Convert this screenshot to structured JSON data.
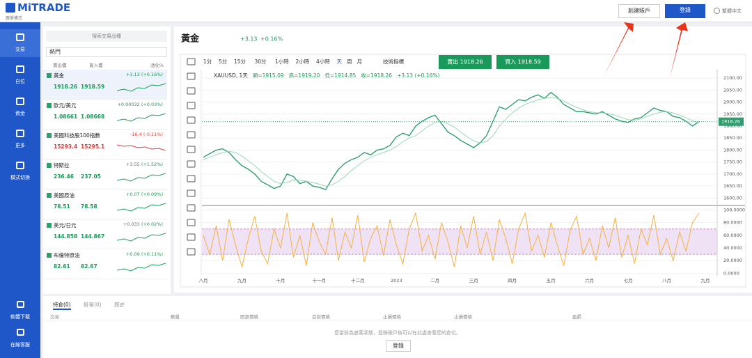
{
  "header": {
    "logo": "MiTRADE",
    "logo_sub": "跟單模式",
    "create_account": "創建賬戶",
    "login": "登錄",
    "language": "繁體中文"
  },
  "sidebar": {
    "items": [
      "交易",
      "自位",
      "資金",
      "更多",
      "模式切換"
    ],
    "bottom": [
      "軟體下載",
      "在線客服"
    ]
  },
  "watchlist": {
    "search": "搜索交易品種",
    "tab": "熱門",
    "columns": [
      "賣出價",
      "買入價",
      "漲化%"
    ],
    "rows": [
      {
        "name": "黃金",
        "sell": "1918.26",
        "buy": "1918.59",
        "change": "+3.13 (+0.16%)"
      },
      {
        "name": "歐元/美元",
        "sell": "1.08661",
        "buy": "1.08668",
        "change": "+0.00032 (+0.03%)"
      },
      {
        "name": "美國科技股100指數",
        "sell": "15293.4",
        "buy": "15295.1",
        "change": "-16.4 (-0.11%)"
      },
      {
        "name": "特斯拉",
        "sell": "236.46",
        "buy": "237.05",
        "change": "+3.55 (+1.52%)"
      },
      {
        "name": "美國原油",
        "sell": "78.51",
        "buy": "78.58",
        "change": "+0.07 (+0.09%)"
      },
      {
        "name": "美元/日元",
        "sell": "144.858",
        "buy": "144.867",
        "change": "+0.033 (+0.02%)"
      },
      {
        "name": "布倫特原油",
        "sell": "82.61",
        "buy": "82.67",
        "change": "+0.09 (+0.11%)"
      }
    ]
  },
  "instrument": {
    "name": "黃金",
    "change": "+3.13",
    "change_pct": "+0.16%"
  },
  "toolbar": {
    "intervals": [
      "1分",
      "5分",
      "15分",
      "30分",
      "1小時",
      "2小時",
      "4小時",
      "天",
      "周",
      "月"
    ],
    "indicators": "技術指標",
    "sell": "賣出 1918.26",
    "buy": "買入 1918.59"
  },
  "ohlc": {
    "symbol": "XAUUSD, 1天",
    "open": "開=1915.09",
    "high": "高=1919.20",
    "low": "低=1914.85",
    "close": "收=1918.26",
    "change": "+3.13 (+0.16%)"
  },
  "chart_data": {
    "type": "line",
    "categories": [
      "八月",
      null,
      null,
      null,
      null,
      null,
      "九月",
      null,
      null,
      null,
      null,
      null,
      "十月",
      null,
      null,
      null,
      null,
      null,
      "十一月",
      null,
      null,
      null,
      null,
      null,
      "十二月",
      null,
      null,
      null,
      null,
      null,
      "2023",
      null,
      null,
      null,
      null,
      null,
      "二月",
      null,
      null,
      null,
      null,
      null,
      "三月",
      null,
      null,
      null,
      null,
      null,
      "四月",
      null,
      null,
      null,
      null,
      null,
      "五月",
      null,
      null,
      null,
      null,
      null,
      "六月",
      null,
      null,
      null,
      null,
      null,
      "七月",
      null,
      null,
      null,
      null,
      null,
      "八月",
      null,
      null,
      null,
      null,
      null,
      "九月"
    ],
    "series": [
      {
        "color": "#2e9e6e",
        "values": [
          1770,
          1785,
          1800,
          1805,
          1790,
          1760,
          1735,
          1720,
          1700,
          1670,
          1655,
          1640,
          1650,
          1700,
          1690,
          1660,
          1670,
          1650,
          1645,
          1635,
          1680,
          1720,
          1745,
          1760,
          1770,
          1790,
          1780,
          1800,
          1805,
          1820,
          1855,
          1870,
          1860,
          1900,
          1920,
          1935,
          1945,
          1910,
          1875,
          1860,
          1840,
          1825,
          1810,
          1830,
          1860,
          1920,
          1980,
          1970,
          1990,
          2010,
          2005,
          2020,
          2030,
          2015,
          2040,
          2020,
          1990,
          1975,
          1960,
          1960,
          1955,
          1950,
          1960,
          1945,
          1930,
          1920,
          1915,
          1930,
          1935,
          1955,
          1975,
          1965,
          1960,
          1940,
          1935,
          1920,
          1900,
          1918.26,
          null
        ]
      },
      {
        "color": "#9ad8b8",
        "values": [
          1760,
          1770,
          1780,
          1790,
          1795,
          1790,
          1775,
          1755,
          1735,
          1710,
          1690,
          1670,
          1660,
          1665,
          1675,
          1675,
          1670,
          1665,
          1658,
          1650,
          1655,
          1670,
          1690,
          1715,
          1735,
          1755,
          1770,
          1780,
          1790,
          1800,
          1815,
          1835,
          1850,
          1860,
          1880,
          1900,
          1915,
          1920,
          1910,
          1895,
          1875,
          1855,
          1838,
          1830,
          1835,
          1860,
          1900,
          1930,
          1955,
          1975,
          1990,
          2000,
          2010,
          2015,
          2020,
          2015,
          2005,
          1990,
          1978,
          1968,
          1960,
          1956,
          1955,
          1952,
          1945,
          1935,
          1927,
          1925,
          1930,
          1940,
          1950,
          1958,
          1960,
          1955,
          1945,
          1935,
          1922,
          1915,
          null
        ]
      },
      {
        "color": "#f5b041",
        "axis": "y2",
        "values": [
          60,
          30,
          75,
          20,
          85,
          45,
          10,
          55,
          90,
          35,
          15,
          70,
          40,
          95,
          25,
          60,
          12,
          80,
          50,
          30,
          88,
          20,
          65,
          40,
          92,
          18,
          55,
          75,
          28,
          85,
          45,
          15,
          70,
          95,
          35,
          60,
          22,
          80,
          50,
          10,
          75,
          40,
          90,
          30,
          65,
          20,
          85,
          55,
          15,
          70,
          95,
          35,
          60,
          25,
          80,
          45,
          12,
          68,
          90,
          30,
          55,
          20,
          75,
          40,
          88,
          25,
          60,
          15,
          70,
          45,
          92,
          30,
          55,
          20,
          65,
          35,
          80,
          95,
          null
        ]
      }
    ],
    "ylim": [
      1575,
      2135
    ],
    "yticks": [
      {
        "value": 1600,
        "label": "1600.00"
      },
      {
        "value": 1650,
        "label": "1650.00"
      },
      {
        "value": 1700,
        "label": "1700.00"
      },
      {
        "value": 1750,
        "label": "1750.00"
      },
      {
        "value": 1800,
        "label": "1800.00"
      },
      {
        "value": 1850,
        "label": "1850.00"
      },
      {
        "value": 1900,
        "label": "1900.00"
      },
      {
        "value": 1950,
        "label": "1950.00"
      },
      {
        "value": 2000,
        "label": "2000.00"
      },
      {
        "value": 2050,
        "label": "2050.00"
      },
      {
        "value": 2100,
        "label": "2100.00"
      }
    ],
    "y2lim": [
      -4,
      106
    ],
    "y2ticks": [
      {
        "value": 0,
        "label": "0.0000"
      },
      {
        "value": 20,
        "label": "20.0000"
      },
      {
        "value": 40,
        "label": "40.0000"
      },
      {
        "value": 60,
        "label": "60.0000"
      },
      {
        "value": 80,
        "label": "80.0000"
      },
      {
        "value": 100,
        "label": "100.0000"
      }
    ],
    "y2bands": [
      30,
      70
    ],
    "grid": true
  },
  "positions": {
    "tabs": [
      "持倉(0)",
      "掛單(0)",
      "歷史"
    ],
    "columns": [
      "交易",
      "數量",
      "開倉價格",
      "目前價格",
      "止損價格",
      "止損價格",
      "盈虧"
    ],
    "message": "您當前為遊客狀態，登錄賬戶後可以在此處查看您的倉位。",
    "login": "登錄"
  }
}
